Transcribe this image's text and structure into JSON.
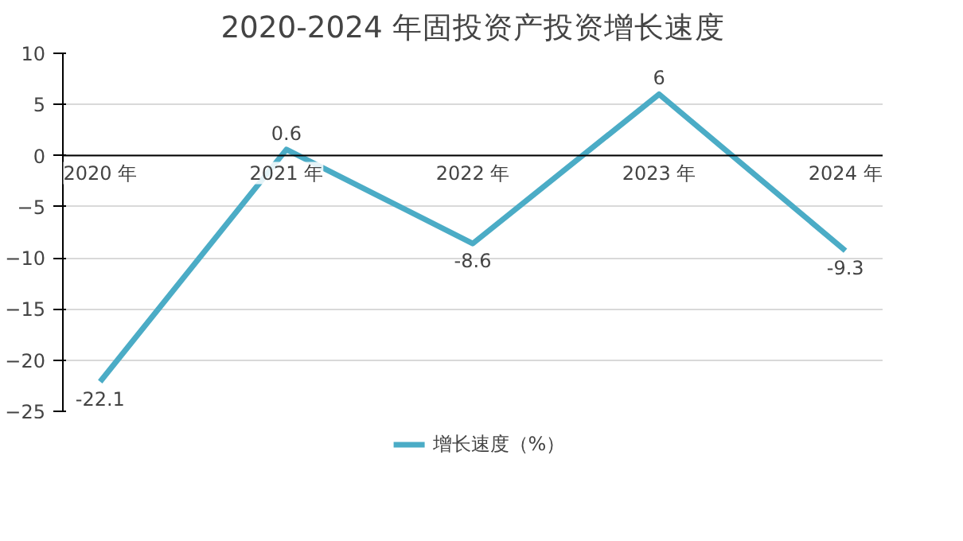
{
  "chart_data": {
    "type": "line",
    "title": "2020-2024 年固投资产投资增长速度",
    "categories": [
      "2020 年",
      "2021 年",
      "2022 年",
      "2023 年",
      "2024 年"
    ],
    "series": [
      {
        "name": "增长速度（%）",
        "color": "#4bacc6",
        "values": [
          -22.1,
          0.6,
          -8.6,
          6,
          -9.3
        ]
      }
    ],
    "ylim": [
      -25,
      10
    ],
    "yticks": [
      -25,
      -20,
      -15,
      -10,
      -5,
      0,
      5,
      10
    ],
    "grid": "y",
    "legend": "bottom",
    "data_labels": true,
    "marker": "none",
    "line_style": "solid"
  }
}
